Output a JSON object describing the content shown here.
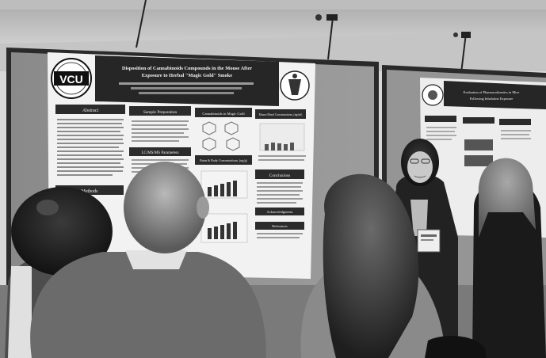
{
  "poster_main": {
    "logo_text": "VCU",
    "title_line1": "Disposition of Cannabinoids Compounds in the Mouse After",
    "title_line2": "Exposure to Herbal \"Magic Gold\" Smoke",
    "sections": {
      "abstract": "Abstract",
      "sample_preparation": "Sample Preparation",
      "cannabinoids_in_magic_gold": "Cannabinoids in Magic Gold",
      "blood_concentrations": "Mouse Blood Concentrations, (ng/ml)",
      "gcms": "LC/MS/MS Parameters",
      "brain_concentrations": "Brain & Body Concentrations, (ng/g)",
      "conclusions": "Conclusions",
      "acknowledgments": "Acknowledgments",
      "references": "References",
      "methods": "Methods"
    }
  },
  "poster_right": {
    "title_line1": "Evaluation of Pharmacokinetics in Mice",
    "title_line2": "Following Inhalation Exposure"
  }
}
